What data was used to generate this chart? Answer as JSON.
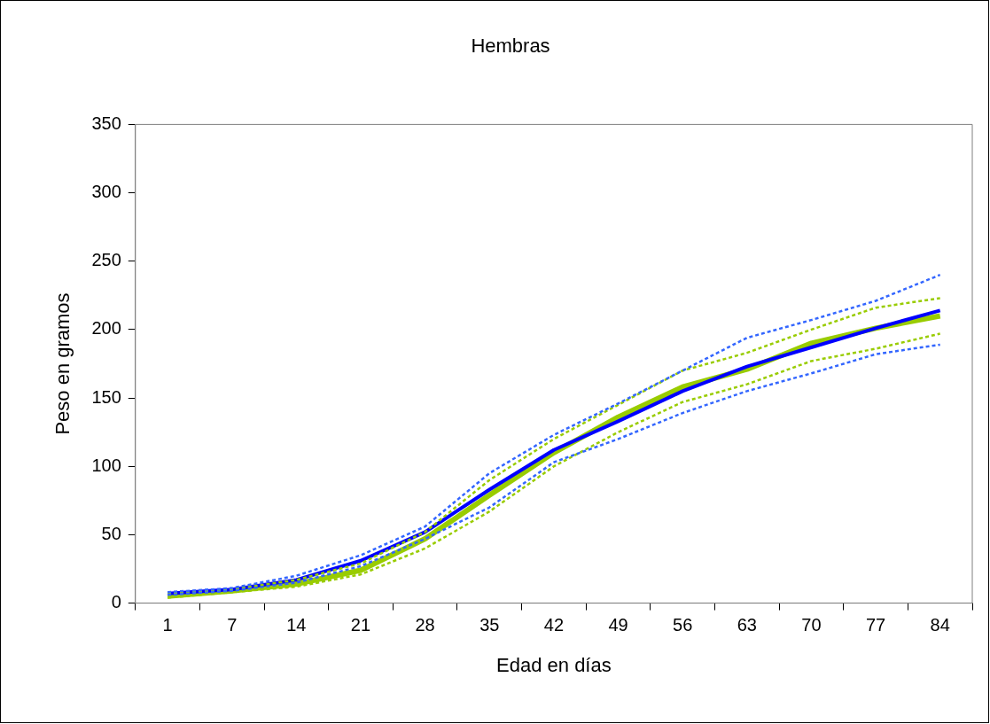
{
  "chart_data": {
    "type": "line",
    "title": "Hembras",
    "xlabel": "Edad en días",
    "ylabel": "Peso en gramos",
    "categories": [
      "1",
      "7",
      "14",
      "21",
      "28",
      "35",
      "42",
      "49",
      "56",
      "63",
      "70",
      "77",
      "84"
    ],
    "ylim": [
      0,
      350
    ],
    "yticks": [
      0,
      50,
      100,
      150,
      200,
      250,
      300,
      350
    ],
    "grid": false,
    "legend": false,
    "marker": "none",
    "series": [
      {
        "color": "#3366ff",
        "line_style": "dotted",
        "values": [
          8,
          11,
          20,
          35,
          56,
          95,
          123,
          146,
          170,
          194,
          207,
          221,
          240
        ]
      },
      {
        "color": "#3366ff",
        "line_style": "dotted",
        "values": [
          6,
          9,
          15,
          27,
          47,
          70,
          103,
          120,
          139,
          155,
          168,
          182,
          189
        ]
      },
      {
        "color": "#99cc00",
        "line_style": "dotted",
        "values": [
          7,
          10,
          17,
          29,
          52,
          90,
          120,
          145,
          170,
          183,
          200,
          216,
          223
        ]
      },
      {
        "color": "#99cc00",
        "line_style": "dotted",
        "values": [
          4,
          8,
          12,
          21,
          40,
          67,
          100,
          125,
          147,
          160,
          177,
          186,
          197
        ]
      },
      {
        "color": "#0000ff",
        "line_style": "solid",
        "values": [
          7,
          10,
          17,
          31,
          52,
          83,
          112,
          133,
          155,
          173,
          187,
          201,
          214
        ]
      },
      {
        "color": "#99cc00",
        "line_style": "solid",
        "values": [
          5,
          9,
          14,
          24,
          47,
          79,
          110,
          136,
          158,
          171,
          190,
          201,
          210
        ]
      }
    ]
  }
}
